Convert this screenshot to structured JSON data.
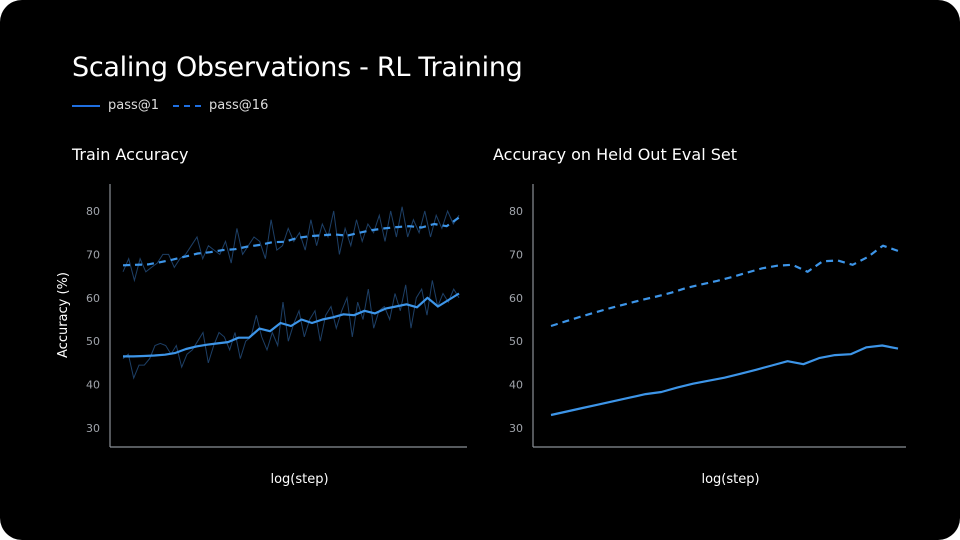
{
  "title": "Scaling Observations - RL Training",
  "legend": [
    {
      "label": "pass@1",
      "style": "solid"
    },
    {
      "label": "pass@16",
      "style": "dashed"
    }
  ],
  "colors": {
    "line": "#3d95e8",
    "raw": "#1d3f66",
    "legend": "#1f6fe0",
    "axis": "#8a8f96"
  },
  "chart_data": [
    {
      "type": "line",
      "title": "Train Accuracy",
      "xlabel": "log(step)",
      "ylabel": "Accuracy (%)",
      "ylim": [
        26,
        86
      ],
      "yticks": [
        30,
        40,
        50,
        60,
        70,
        80
      ],
      "grid": false,
      "series": [
        {
          "name": "pass@1",
          "style": "solid",
          "values": [
            46.5,
            46.5,
            46.6,
            46.7,
            46.9,
            47.3,
            48.2,
            48.8,
            49.2,
            49.5,
            49.8,
            50.8,
            50.8,
            52.9,
            52.3,
            54.2,
            53.5,
            55,
            54.2,
            55,
            55.5,
            56.2,
            56,
            57,
            56.4,
            57.5,
            58,
            58.5,
            57.8,
            60,
            58,
            59.5,
            61
          ],
          "raw": [
            46,
            47,
            41.5,
            44.5,
            44.5,
            46,
            49,
            49.5,
            49,
            47,
            49,
            44,
            47,
            48,
            50,
            52,
            45,
            49,
            52,
            51,
            48,
            52,
            46,
            50,
            51,
            56,
            51,
            48,
            52,
            49,
            59,
            50,
            54,
            57,
            51,
            55,
            57,
            50,
            56,
            58,
            53,
            57,
            60,
            51,
            59,
            55,
            62,
            53,
            57,
            58,
            55,
            61,
            57,
            63,
            53,
            60,
            62,
            56,
            64,
            58,
            61,
            59,
            62,
            60
          ]
        },
        {
          "name": "pass@16",
          "style": "dashed",
          "values": [
            67.5,
            67.6,
            67.7,
            68.2,
            68.8,
            69.5,
            70.2,
            70.5,
            71,
            71.2,
            71.8,
            72.2,
            72.8,
            72.9,
            73.8,
            74.2,
            74.4,
            74.6,
            74.3,
            75,
            75.6,
            76,
            76.3,
            76.5,
            76.2,
            77,
            76.5,
            78.5
          ],
          "raw": [
            66,
            69,
            64,
            69,
            66,
            67,
            68,
            70,
            70,
            67,
            69,
            70,
            72,
            74,
            69,
            72,
            71,
            70,
            73,
            68,
            76,
            70,
            72,
            74,
            73,
            69,
            78,
            71,
            72,
            76,
            73,
            75,
            71,
            78,
            72,
            77,
            74,
            80,
            70,
            76,
            72,
            78,
            73,
            77,
            75,
            79,
            73,
            80,
            74,
            81,
            74,
            78,
            75,
            80,
            74,
            79,
            76,
            80,
            77,
            79
          ]
        }
      ]
    },
    {
      "type": "line",
      "title": "Accuracy on Held Out Eval Set",
      "xlabel": "log(step)",
      "ylabel": "",
      "ylim": [
        26,
        86
      ],
      "yticks": [
        30,
        40,
        50,
        60,
        70,
        80
      ],
      "grid": false,
      "series": [
        {
          "name": "pass@1",
          "style": "solid",
          "values": [
            33,
            33.8,
            34.6,
            35.4,
            36.2,
            37,
            37.8,
            38.3,
            39.3,
            40.2,
            40.9,
            41.6,
            42.5,
            43.4,
            44.4,
            45.4,
            44.7,
            46.1,
            46.8,
            47,
            48.6,
            49,
            48.3
          ]
        },
        {
          "name": "pass@16",
          "style": "dashed",
          "values": [
            53.5,
            54.6,
            55.7,
            56.7,
            57.7,
            58.6,
            59.5,
            60.3,
            61.2,
            62.3,
            63.1,
            63.9,
            64.8,
            65.8,
            66.8,
            67.4,
            67.6,
            66,
            68.4,
            68.6,
            67.6,
            69.4,
            72,
            70.8
          ]
        }
      ]
    }
  ]
}
